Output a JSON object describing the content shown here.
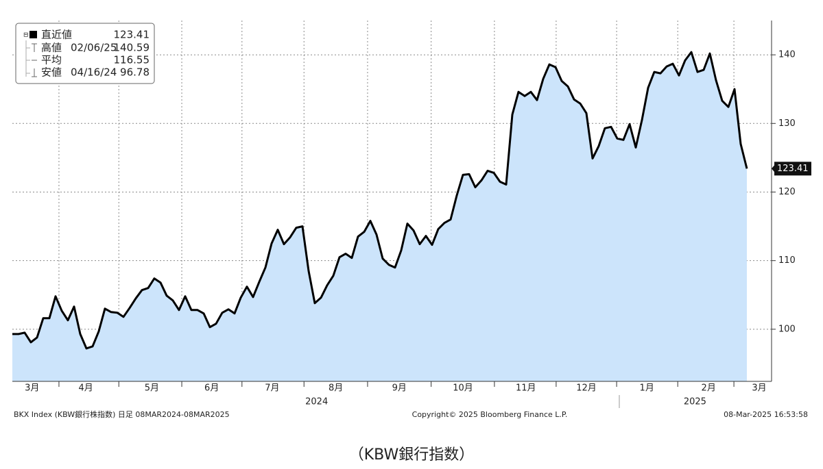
{
  "chart_data": {
    "type": "area",
    "series": [
      {
        "name": "BKX Index",
        "color": "#000000",
        "fill": "#cce4fb",
        "values": [
          99.3,
          99.3,
          99.5,
          98.1,
          98.8,
          101.6,
          101.6,
          104.8,
          102.7,
          101.3,
          103.3,
          99.3,
          97.2,
          97.5,
          99.7,
          103.0,
          102.5,
          102.4,
          101.8,
          103.1,
          104.5,
          105.7,
          106.0,
          107.4,
          106.8,
          104.9,
          104.2,
          102.8,
          104.8,
          102.8,
          102.8,
          102.3,
          100.3,
          100.8,
          102.4,
          102.9,
          102.3,
          104.6,
          106.2,
          104.7,
          106.9,
          109.0,
          112.5,
          114.5,
          112.4,
          113.4,
          114.8,
          115.0,
          108.5,
          103.8,
          104.6,
          106.4,
          107.8,
          110.5,
          111.0,
          110.4,
          113.5,
          114.2,
          115.8,
          113.8,
          110.3,
          109.4,
          109.0,
          111.5,
          115.4,
          114.4,
          112.4,
          113.6,
          112.3,
          114.6,
          115.5,
          116.0,
          119.5,
          122.5,
          122.6,
          120.7,
          121.7,
          123.1,
          122.8,
          121.5,
          121.1,
          131.3,
          134.6,
          134.0,
          134.6,
          133.4,
          136.5,
          138.6,
          138.2,
          136.2,
          135.4,
          133.5,
          132.9,
          131.5,
          124.9,
          126.7,
          129.3,
          129.5,
          127.8,
          127.6,
          129.9,
          126.5,
          130.5,
          135.2,
          137.5,
          137.3,
          138.3,
          138.7,
          137.0,
          139.2,
          140.4,
          137.5,
          137.8,
          140.2,
          136.3,
          133.3,
          132.4,
          135.0,
          127.0,
          123.41
        ]
      }
    ],
    "xlim": [
      0,
      123
    ],
    "xticks": [
      {
        "value": 3.2,
        "label": "3月"
      },
      {
        "value": 11.9,
        "label": "4月"
      },
      {
        "value": 22.6,
        "label": "5月"
      },
      {
        "value": 32.3,
        "label": "6月"
      },
      {
        "value": 42.1,
        "label": "7月"
      },
      {
        "value": 52.4,
        "label": "8月"
      },
      {
        "value": 62.7,
        "label": "9月"
      },
      {
        "value": 73,
        "label": "10月"
      },
      {
        "value": 83.2,
        "label": "11月"
      },
      {
        "value": 93,
        "label": "12月"
      },
      {
        "value": 102.8,
        "label": "1月"
      },
      {
        "value": 112.8,
        "label": "2月"
      },
      {
        "value": 121,
        "label": "3月"
      }
    ],
    "year_ticks": [
      {
        "value": 49.3,
        "label": "2024"
      },
      {
        "value": 110.6,
        "label": "2025"
      }
    ],
    "ylim": [
      92.4,
      145
    ],
    "yticks": [
      100,
      110,
      120,
      130,
      140
    ],
    "grid": true,
    "legend": {
      "rows": [
        {
          "label": "直近値",
          "value": "123.41"
        },
        {
          "label": "高値",
          "date": "02/06/25",
          "value": "140.59"
        },
        {
          "label": "平均",
          "value": "116.55"
        },
        {
          "label": "安値",
          "date": "04/16/24",
          "value": "96.78"
        }
      ]
    },
    "footer": {
      "left": "BKX Index (KBW銀行株指数) 日足 08MAR2024-08MAR2025",
      "center": "Copyright© 2025 Bloomberg Finance L.P.",
      "right": "08-Mar-2025 16:53:58"
    },
    "caption": "（KBW銀行指数）"
  }
}
